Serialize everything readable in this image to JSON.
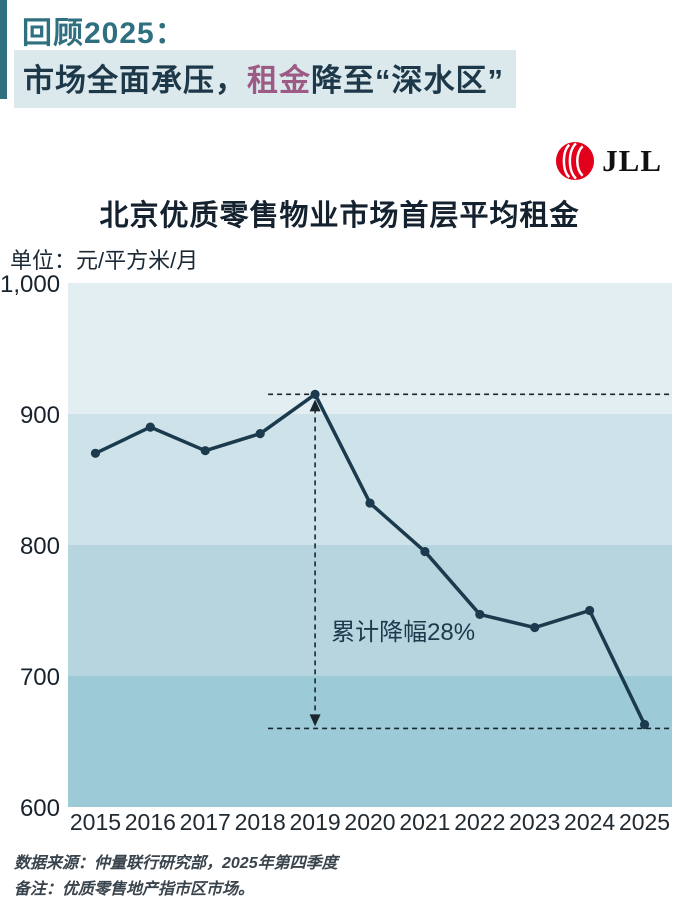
{
  "header": {
    "kicker": "回顾2025：",
    "headline_pre": "市场全面承压，",
    "headline_highlight": "租金",
    "headline_post": "降至“深水区”",
    "accent_color": "#2E6F80",
    "navy_color": "#1C3849",
    "purple_color": "#9C5B84",
    "highlight_bg": "#DBE8EC"
  },
  "logo": {
    "text": "JLL",
    "red": "#E2001A"
  },
  "chart_title": "北京优质零售物业市场首层平均租金",
  "title_color": "#14212E",
  "unit_label": "单位：元/平方米/月",
  "chart_data": {
    "type": "line",
    "title": "北京优质零售物业市场首层平均租金",
    "ylabel": "元/平方米/月",
    "categories": [
      "2015",
      "2016",
      "2017",
      "2018",
      "2019",
      "2020",
      "2021",
      "2022",
      "2023",
      "2024",
      "2025"
    ],
    "values": [
      870,
      890,
      872,
      885,
      915,
      832,
      795,
      747,
      737,
      750,
      663
    ],
    "ylim": [
      600,
      1000
    ],
    "yticks": [
      1000,
      900,
      800,
      700,
      600
    ],
    "ytick_labels": [
      "1,000",
      "900",
      "800",
      "700",
      "600"
    ],
    "grid": "banded-background",
    "legend": "none",
    "band_colors": [
      "#E2EEF1",
      "#CEE3E9",
      "#B6D5DE",
      "#9CCAD6"
    ],
    "line_color": "#1B3A4E",
    "dash_color": "#1A262E",
    "annotation": {
      "label": "累计降幅28%",
      "at_category": "2019",
      "from_value": 915,
      "to_value": 660
    }
  },
  "footer": {
    "source": "数据来源：仲量联行研究部，2025年第四季度",
    "note": "备注：优质零售地产指市区市场。"
  }
}
